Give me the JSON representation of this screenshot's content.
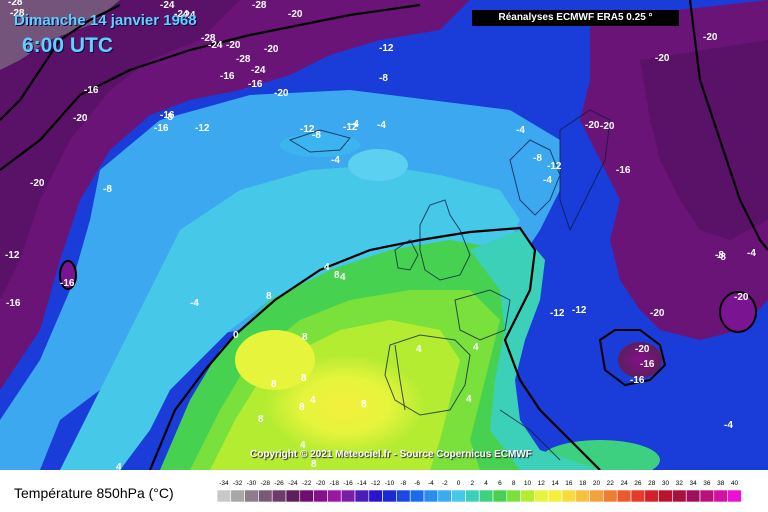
{
  "header": {
    "date": "Dimanche 14 janvier 1968",
    "time": "6:00 UTC"
  },
  "source": "Réanalyses ECMWF ERA5 0.25 °",
  "copyright": "Copyright © 2021 Meteociel.fr - Source Copernicus ECMWF",
  "legend": {
    "title": "Température 850hPa (°C)",
    "ticks": [
      "-34",
      "-32",
      "-30",
      "-28",
      "-26",
      "-24",
      "-22",
      "-20",
      "-18",
      "-16",
      "-14",
      "-12",
      "-10",
      "-8",
      "-6",
      "-4",
      "-2",
      "0",
      "2",
      "4",
      "6",
      "8",
      "10",
      "12",
      "14",
      "16",
      "18",
      "20",
      "22",
      "24",
      "26",
      "28",
      "30",
      "32",
      "34",
      "36",
      "38",
      "40"
    ],
    "colors": [
      "#c8c8c8",
      "#a8a8a8",
      "#8c7c8c",
      "#7a5a7a",
      "#6b3c6b",
      "#5c1e5c",
      "#6e0c70",
      "#84108a",
      "#9818a4",
      "#7a1ca8",
      "#4a1cb8",
      "#2a16c8",
      "#1a2ad8",
      "#1a4ae4",
      "#1a6cec",
      "#2a8cf0",
      "#3cacf0",
      "#46c8e8",
      "#3cd0b8",
      "#3cd080",
      "#46d250",
      "#7ae03c",
      "#b4ec32",
      "#e6f43c",
      "#f4f03c",
      "#f8dc3c",
      "#f8c03c",
      "#f4a03c",
      "#f07c32",
      "#ec5a2c",
      "#e43c28",
      "#d42028",
      "#c01030",
      "#a81040",
      "#9c105c",
      "#b8107c",
      "#d410a4",
      "#ec10d4"
    ]
  },
  "map_labels": [
    {
      "text": "-28"
    },
    {
      "text": "-24"
    },
    {
      "text": "-28"
    },
    {
      "text": "-24"
    },
    {
      "text": "-20"
    },
    {
      "text": "-28"
    },
    {
      "text": "-28"
    },
    {
      "text": "-24"
    },
    {
      "text": "-20"
    },
    {
      "text": "-24"
    },
    {
      "text": "-28"
    },
    {
      "text": "-16"
    },
    {
      "text": "-24"
    },
    {
      "text": "-20"
    },
    {
      "text": "-16"
    },
    {
      "text": "-20"
    },
    {
      "text": "-16"
    },
    {
      "text": "-16"
    },
    {
      "text": "-20"
    },
    {
      "text": "-12"
    },
    {
      "text": "-8"
    },
    {
      "text": "-20"
    },
    {
      "text": "-20"
    },
    {
      "text": "-12"
    },
    {
      "text": "-16"
    },
    {
      "text": "-8"
    },
    {
      "text": "-12"
    },
    {
      "text": "-12"
    },
    {
      "text": "-20"
    },
    {
      "text": "-8"
    },
    {
      "text": "-8"
    },
    {
      "text": "-4"
    },
    {
      "text": "-4"
    },
    {
      "text": "-4"
    },
    {
      "text": "-4"
    },
    {
      "text": "-20"
    },
    {
      "text": "-20"
    },
    {
      "text": "-8"
    },
    {
      "text": "-4"
    },
    {
      "text": "-12"
    },
    {
      "text": "-16"
    },
    {
      "text": "-12"
    },
    {
      "text": "-16"
    },
    {
      "text": "-8"
    },
    {
      "text": "-16"
    },
    {
      "text": "-4"
    },
    {
      "text": "-20"
    },
    {
      "text": "-20"
    },
    {
      "text": "-12"
    },
    {
      "text": "-12"
    },
    {
      "text": "-20"
    },
    {
      "text": "-16"
    },
    {
      "text": "-16"
    },
    {
      "text": "4"
    },
    {
      "text": "8"
    },
    {
      "text": "8"
    },
    {
      "text": "0"
    },
    {
      "text": "4"
    },
    {
      "text": "4"
    },
    {
      "text": "4"
    },
    {
      "text": "8"
    },
    {
      "text": "8"
    },
    {
      "text": "8"
    },
    {
      "text": "8"
    },
    {
      "text": "4"
    },
    {
      "text": "8"
    },
    {
      "text": "8"
    },
    {
      "text": "4"
    },
    {
      "text": "4"
    },
    {
      "text": "8"
    },
    {
      "text": "4"
    },
    {
      "text": "-4"
    },
    {
      "text": "-8"
    },
    {
      "text": "-4"
    }
  ]
}
